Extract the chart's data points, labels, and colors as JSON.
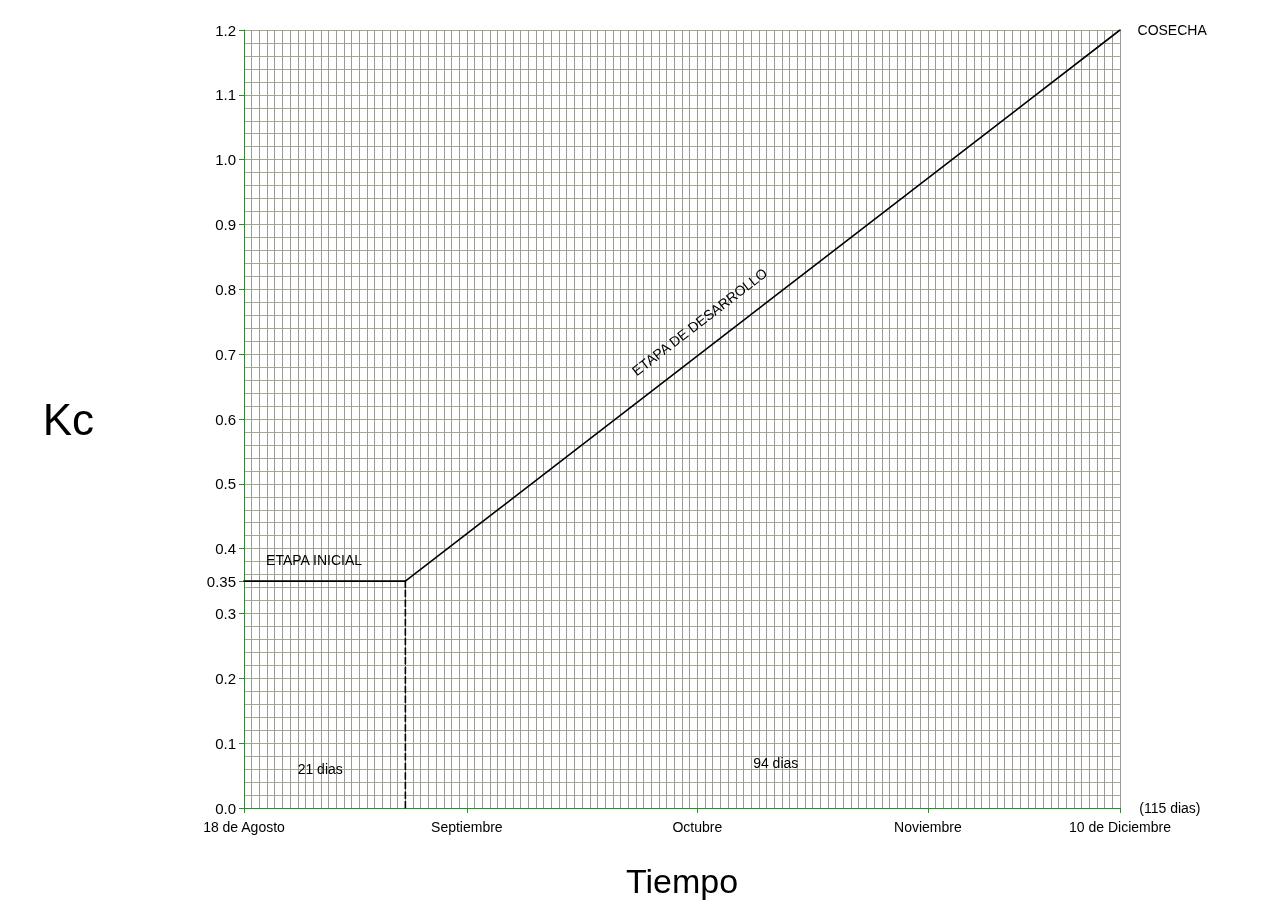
{
  "chart_data": {
    "type": "line",
    "xlabel": "Tiempo",
    "ylabel": "Kc",
    "xlim": [
      "--08-18",
      "--12-10"
    ],
    "xticks": [
      {
        "value": "--08-18",
        "label": "18 de Agosto"
      },
      {
        "value": "--09-16",
        "label": "Septiembre"
      },
      {
        "value": "--10-16",
        "label": "Octubre"
      },
      {
        "value": "--11-15",
        "label": "Noviembre"
      },
      {
        "value": "--12-10",
        "label": "10 de Diciembre"
      }
    ],
    "ylim": [
      0,
      1.2
    ],
    "yticks": [
      {
        "value": 0,
        "label": "0.0"
      },
      0.1,
      0.2,
      0.3,
      0.35,
      0.4,
      0.5,
      0.6,
      0.7,
      0.8,
      0.9,
      {
        "value": 1,
        "label": "1.0"
      },
      1.1,
      1.2
    ],
    "series": [
      {
        "color": "#000000",
        "x": [
          "--08-18",
          "--09-08",
          "--12-10"
        ],
        "values": [
          0.35,
          0.35,
          1.2
        ]
      },
      {
        "color": "#000000",
        "x": [
          "--09-08",
          "--09-08"
        ],
        "values": [
          0,
          0.35
        ],
        "line_style": "dashed"
      }
    ],
    "marker": "none",
    "line_style": "solid",
    "grid": true,
    "annotations": [
      "ETAPA INICIAL",
      "ETAPA DE DESARROLLO",
      "COSECHA",
      "21 dias",
      "94 dias",
      "(115 dias)"
    ]
  }
}
